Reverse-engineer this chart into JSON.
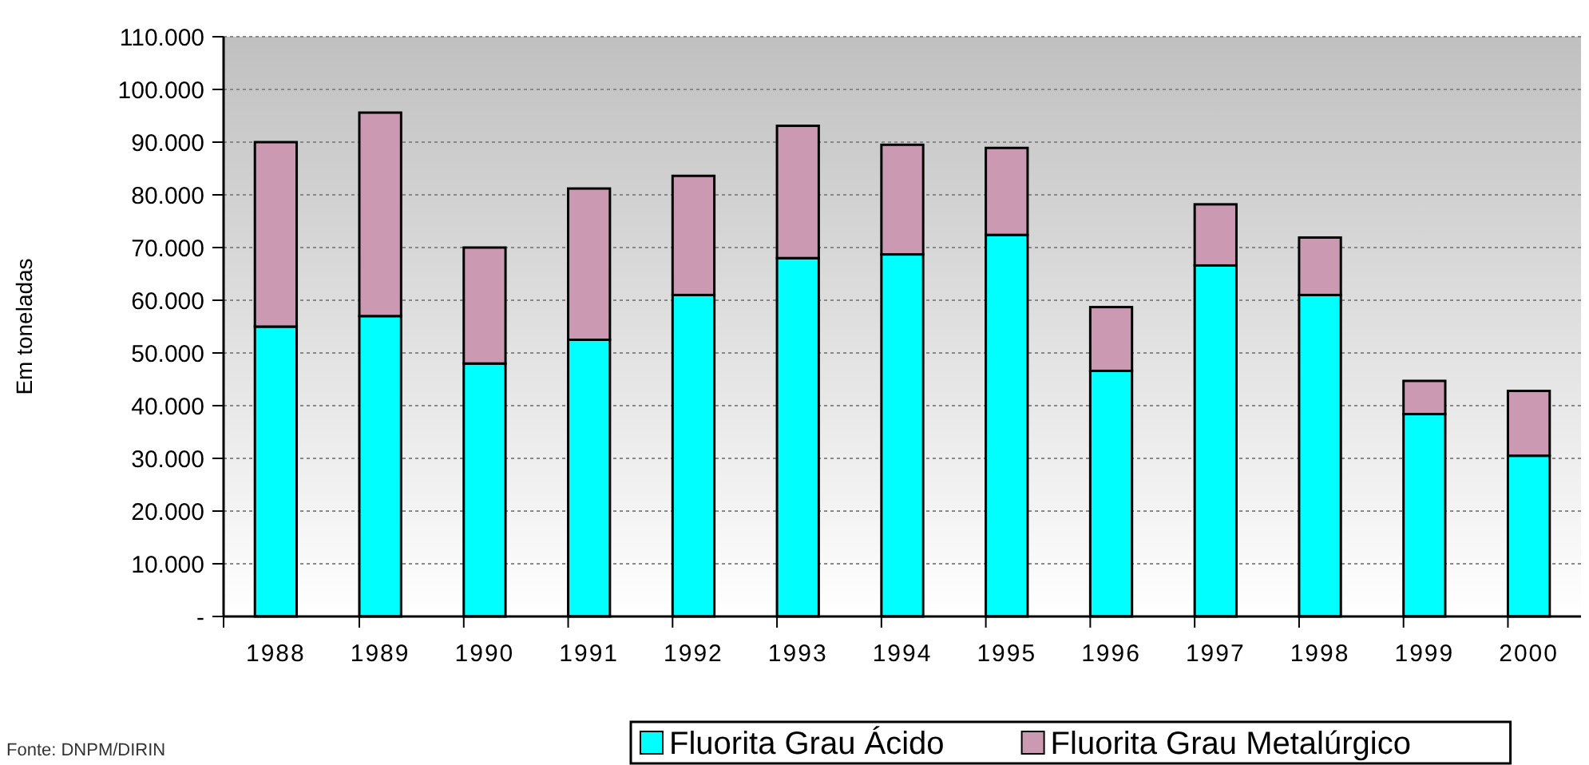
{
  "chart_data": {
    "type": "bar",
    "stacked": true,
    "ylabel": "Em toneladas",
    "categories": [
      "1988",
      "1989",
      "1990",
      "1991",
      "1992",
      "1993",
      "1994",
      "1995",
      "1996",
      "1997",
      "1998",
      "1999",
      "2000"
    ],
    "series": [
      {
        "name": "Fluorita Grau Ácido",
        "color": "#00ffff",
        "values": [
          55000,
          57000,
          48000,
          52500,
          61000,
          68000,
          68700,
          72400,
          46600,
          66600,
          61000,
          38400,
          30500
        ]
      },
      {
        "name": "Fluorita Grau Metalúrgico",
        "color": "#cc99b3",
        "values": [
          35000,
          38600,
          22000,
          28700,
          22600,
          25100,
          20800,
          16500,
          12100,
          11600,
          10900,
          6300,
          12300
        ]
      }
    ],
    "ylim": [
      0,
      110000
    ],
    "yticks": [
      {
        "value": 0,
        "label": "-"
      },
      {
        "value": 10000,
        "label": "10.000"
      },
      {
        "value": 20000,
        "label": "20.000"
      },
      {
        "value": 30000,
        "label": "30.000"
      },
      {
        "value": 40000,
        "label": "40.000"
      },
      {
        "value": 50000,
        "label": "50.000"
      },
      {
        "value": 60000,
        "label": "60.000"
      },
      {
        "value": 70000,
        "label": "70.000"
      },
      {
        "value": 80000,
        "label": "80.000"
      },
      {
        "value": 90000,
        "label": "90.000"
      },
      {
        "value": 100000,
        "label": "100.000"
      },
      {
        "value": 110000,
        "label": "110.000"
      }
    ],
    "grid": "y",
    "legend": "bottom",
    "annotations": [
      "Fonte: DNPM/DIRIN"
    ]
  }
}
